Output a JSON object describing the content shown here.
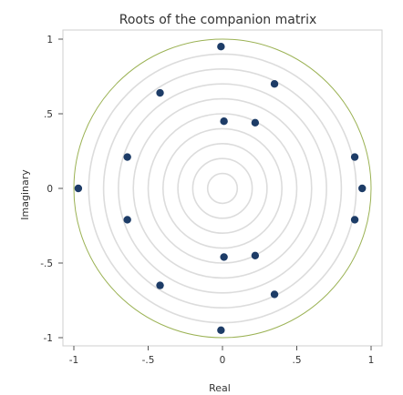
{
  "chart_data": {
    "type": "scatter",
    "title": "Roots of the companion matrix",
    "xlabel": "Real",
    "ylabel": "Imaginary",
    "xlim": [
      -1,
      1
    ],
    "ylim": [
      -1,
      1
    ],
    "x_ticks": [
      {
        "value": -1,
        "label": "-1"
      },
      {
        "value": -0.5,
        "label": "-.5"
      },
      {
        "value": 0,
        "label": "0"
      },
      {
        "value": 0.5,
        "label": ".5"
      },
      {
        "value": 1,
        "label": "1"
      }
    ],
    "y_ticks": [
      {
        "value": 1,
        "label": "1"
      },
      {
        "value": 0.5,
        "label": ".5"
      },
      {
        "value": 0,
        "label": "0"
      },
      {
        "value": -0.5,
        "label": "-.5"
      },
      {
        "value": -1,
        "label": "-1"
      }
    ],
    "grid": "concentric circles",
    "reference_circle_radii": [
      0.1,
      0.2,
      0.3,
      0.4,
      0.5,
      0.6,
      0.7,
      0.8,
      0.9
    ],
    "unit_circle": true,
    "colors": {
      "points": "#1d3c67",
      "unit_circle": "#9bb254",
      "grid_circles": "#dcdcdc",
      "plot_border": "#cfcfcf"
    },
    "points": [
      {
        "x": -0.01,
        "y": 0.95
      },
      {
        "x": 0.35,
        "y": 0.7
      },
      {
        "x": -0.42,
        "y": 0.64
      },
      {
        "x": 0.01,
        "y": 0.45
      },
      {
        "x": 0.22,
        "y": 0.44
      },
      {
        "x": -0.64,
        "y": 0.21
      },
      {
        "x": 0.89,
        "y": 0.21
      },
      {
        "x": -0.97,
        "y": 0.0
      },
      {
        "x": 0.94,
        "y": 0.0
      },
      {
        "x": -0.64,
        "y": -0.21
      },
      {
        "x": 0.89,
        "y": -0.21
      },
      {
        "x": 0.01,
        "y": -0.46
      },
      {
        "x": 0.22,
        "y": -0.45
      },
      {
        "x": -0.42,
        "y": -0.65
      },
      {
        "x": 0.35,
        "y": -0.71
      },
      {
        "x": -0.01,
        "y": -0.95
      }
    ]
  }
}
